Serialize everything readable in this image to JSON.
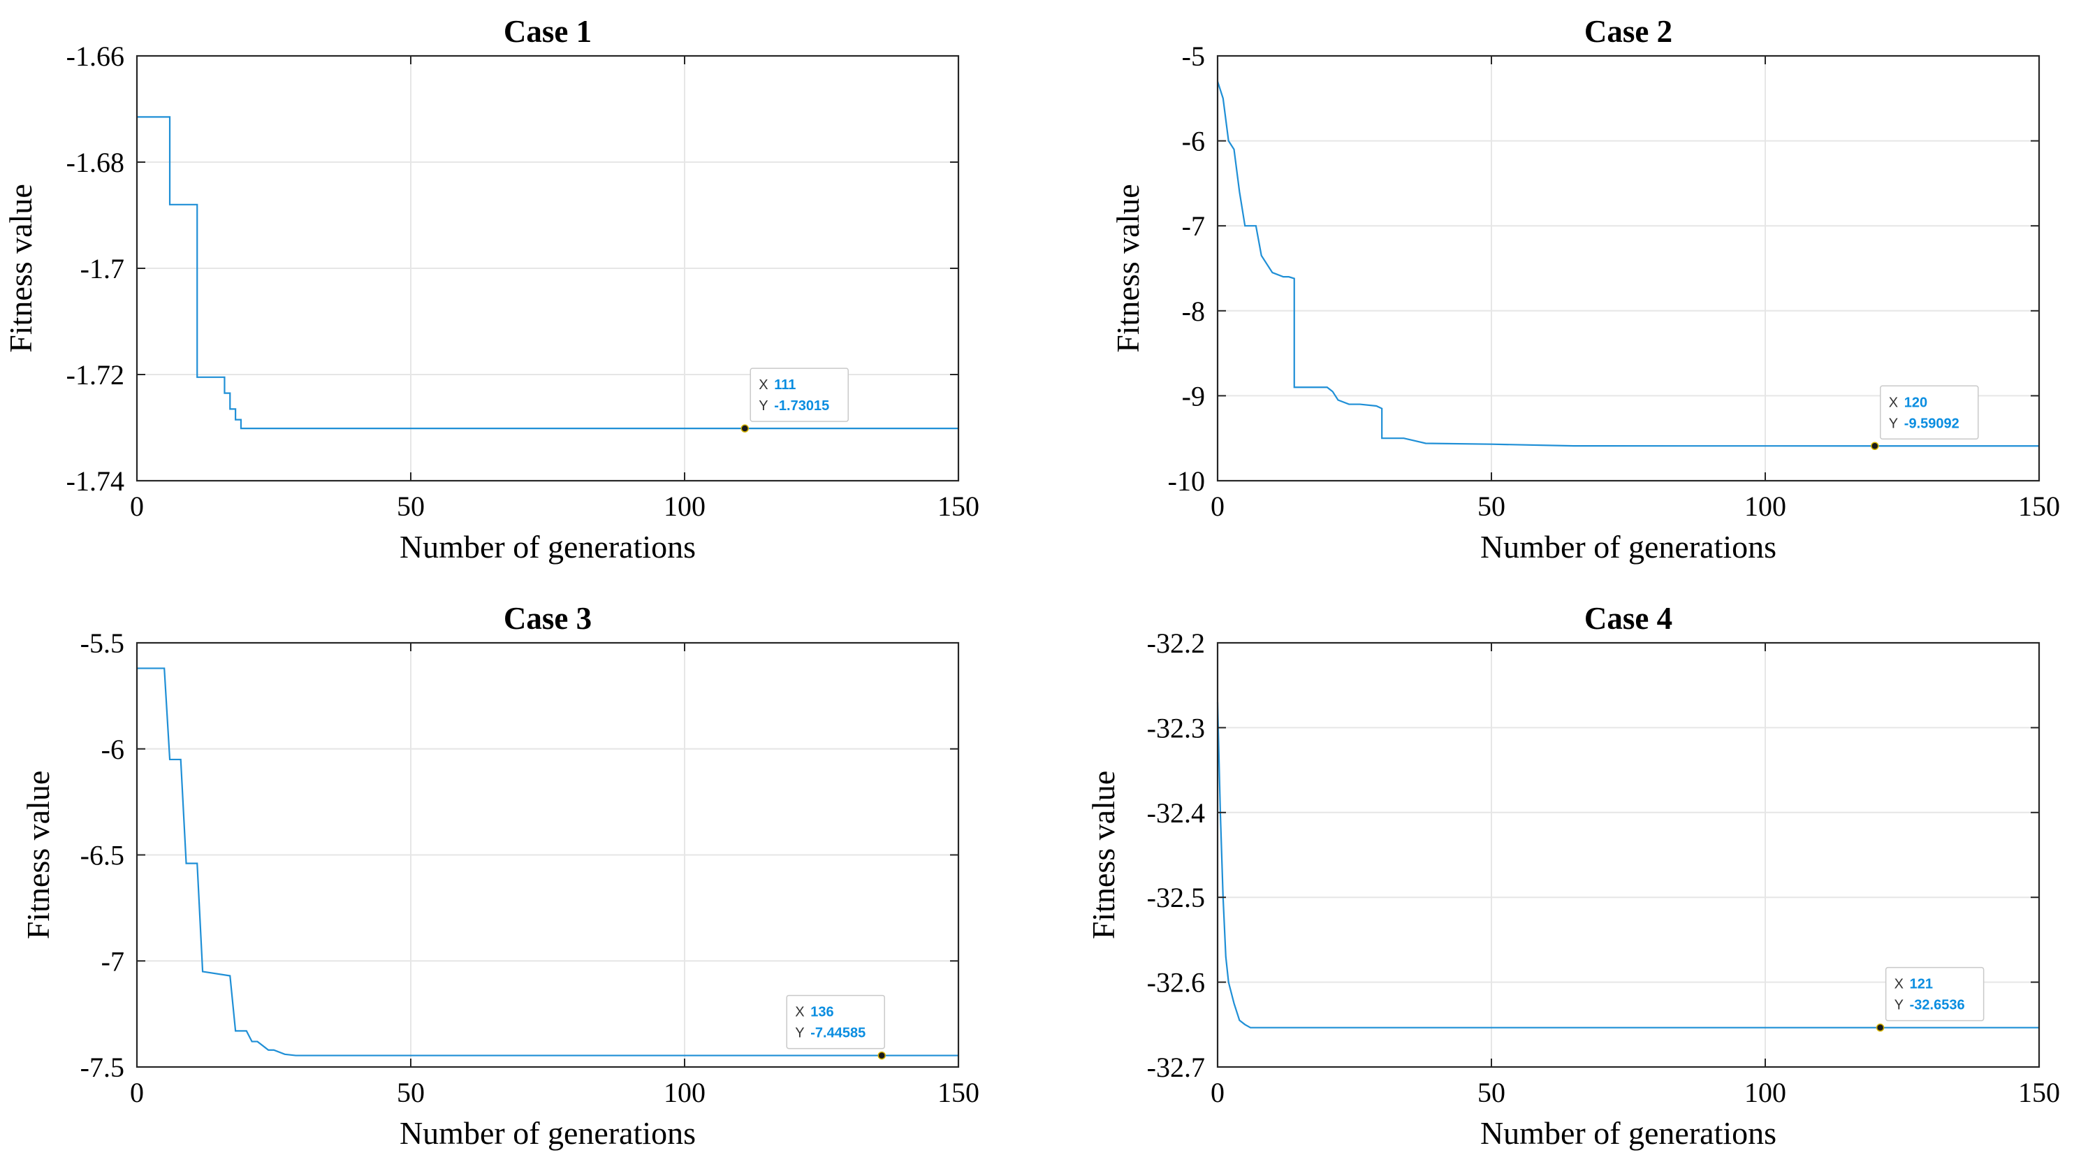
{
  "figure": {
    "line_color": "#1f8fd6",
    "grid_color": "#e6e6e6",
    "datatip_value_color": "#0a8de0"
  },
  "chart_data": [
    {
      "type": "line",
      "title": "Case 1",
      "xlabel": "Number of generations",
      "ylabel": "Fitness value",
      "xlim": [
        0,
        150
      ],
      "ylim": [
        -1.74,
        -1.66
      ],
      "xticks": [
        0,
        50,
        100,
        150
      ],
      "xtick_labels": [
        "0",
        "50",
        "100",
        "150"
      ],
      "yticks": [
        -1.66,
        -1.68,
        -1.7,
        -1.72,
        -1.74
      ],
      "ytick_labels": [
        "-1.66",
        "-1.68",
        "-1.7",
        "-1.72",
        "-1.74"
      ],
      "grid": true,
      "series": [
        {
          "x": [
            0,
            5,
            5,
            6,
            6,
            10,
            10,
            11,
            11,
            15,
            15,
            16,
            16,
            17,
            17,
            18,
            18,
            19,
            19,
            150
          ],
          "y": [
            -1.6715,
            -1.6715,
            -1.6715,
            -1.6715,
            -1.688,
            -1.688,
            -1.688,
            -1.688,
            -1.7205,
            -1.7205,
            -1.7205,
            -1.7205,
            -1.7235,
            -1.7235,
            -1.7265,
            -1.7265,
            -1.7285,
            -1.7285,
            -1.73015,
            -1.73015
          ]
        }
      ],
      "datatip": {
        "x": 111,
        "y": -1.73015,
        "x_label": "X",
        "y_label": "Y",
        "x_text": "111",
        "y_text": "-1.73015"
      }
    },
    {
      "type": "line",
      "title": "Case 2",
      "xlabel": "Number of generations",
      "ylabel": "Fitness value",
      "xlim": [
        0,
        150
      ],
      "ylim": [
        -10,
        -5
      ],
      "xticks": [
        0,
        50,
        100,
        150
      ],
      "xtick_labels": [
        "0",
        "50",
        "100",
        "150"
      ],
      "yticks": [
        -5,
        -6,
        -7,
        -8,
        -9,
        -10
      ],
      "ytick_labels": [
        "-5",
        "-6",
        "-7",
        "-8",
        "-9",
        "-10"
      ],
      "grid": true,
      "series": [
        {
          "x": [
            0,
            1,
            2,
            3,
            4,
            5,
            7,
            8,
            9,
            10,
            12,
            13,
            14,
            14,
            20,
            21,
            22,
            24,
            26,
            29,
            30,
            30,
            34,
            36,
            38,
            50,
            65,
            150
          ],
          "y": [
            -5.3,
            -5.5,
            -6.0,
            -6.1,
            -6.6,
            -7.0,
            -7.0,
            -7.35,
            -7.45,
            -7.55,
            -7.6,
            -7.6,
            -7.62,
            -8.9,
            -8.9,
            -8.95,
            -9.05,
            -9.1,
            -9.1,
            -9.12,
            -9.15,
            -9.5,
            -9.5,
            -9.53,
            -9.56,
            -9.57,
            -9.59,
            -9.59092
          ]
        }
      ],
      "datatip": {
        "x": 120,
        "y": -9.59092,
        "x_label": "X",
        "y_label": "Y",
        "x_text": "120",
        "y_text": "-9.59092"
      }
    },
    {
      "type": "line",
      "title": "Case 3",
      "xlabel": "Number of generations",
      "ylabel": "Fitness value",
      "xlim": [
        0,
        150
      ],
      "ylim": [
        -7.5,
        -5.5
      ],
      "xticks": [
        0,
        50,
        100,
        150
      ],
      "xtick_labels": [
        "0",
        "50",
        "100",
        "150"
      ],
      "yticks": [
        -5.5,
        -6,
        -6.5,
        -7,
        -7.5
      ],
      "ytick_labels": [
        "-5.5",
        "-6",
        "-6.5",
        "-7",
        "-7.5"
      ],
      "grid": true,
      "series": [
        {
          "x": [
            0,
            5,
            6,
            8,
            9,
            11,
            12,
            17,
            18,
            20,
            21,
            22,
            24,
            25,
            27,
            29,
            150
          ],
          "y": [
            -5.62,
            -5.62,
            -6.05,
            -6.05,
            -6.54,
            -6.54,
            -7.05,
            -7.07,
            -7.33,
            -7.33,
            -7.38,
            -7.38,
            -7.42,
            -7.42,
            -7.44,
            -7.44585,
            -7.44585
          ]
        }
      ],
      "datatip": {
        "x": 136,
        "y": -7.44585,
        "x_label": "X",
        "y_label": "Y",
        "x_text": "136",
        "y_text": "-7.44585"
      }
    },
    {
      "type": "line",
      "title": "Case 4",
      "xlabel": "Number of generations",
      "ylabel": "Fitness value",
      "xlim": [
        0,
        150
      ],
      "ylim": [
        -32.7,
        -32.2
      ],
      "xticks": [
        0,
        50,
        100,
        150
      ],
      "xtick_labels": [
        "0",
        "50",
        "100",
        "150"
      ],
      "yticks": [
        -32.2,
        -32.3,
        -32.4,
        -32.5,
        -32.6,
        -32.7
      ],
      "ytick_labels": [
        "-32.2",
        "-32.3",
        "-32.4",
        "-32.5",
        "-32.6",
        "-32.7"
      ],
      "grid": true,
      "series": [
        {
          "x": [
            0,
            0.5,
            1,
            1.5,
            2,
            3,
            4,
            5,
            6,
            150
          ],
          "y": [
            -32.27,
            -32.4,
            -32.5,
            -32.57,
            -32.6,
            -32.625,
            -32.645,
            -32.65,
            -32.6536,
            -32.6536
          ]
        }
      ],
      "datatip": {
        "x": 121,
        "y": -32.6536,
        "x_label": "X",
        "y_label": "Y",
        "x_text": "121",
        "y_text": "-32.6536"
      }
    }
  ]
}
